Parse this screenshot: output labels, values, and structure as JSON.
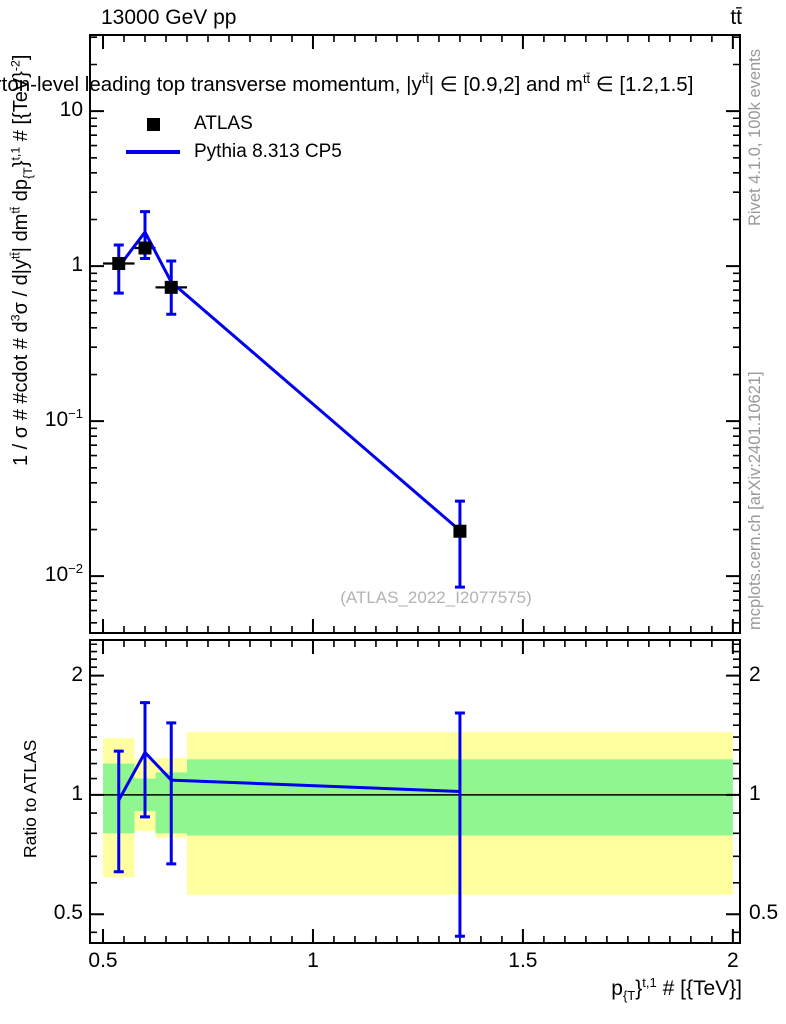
{
  "header": {
    "collision": "13000 GeV pp",
    "process": "tt̄"
  },
  "title_parts": [
    {
      "t": "n",
      "v": "parton-level leading top transverse momentum, |y"
    },
    {
      "t": "sup",
      "v": "tt̄"
    },
    {
      "t": "n",
      "v": "| ∈ [0.9,2] and m"
    },
    {
      "t": "sup",
      "v": "tt̄"
    },
    {
      "t": "n",
      "v": " ∈ [1.2,1.5]"
    }
  ],
  "legend": {
    "entries": [
      {
        "label": "ATLAS",
        "marker": "black-square"
      },
      {
        "label": "Pythia 8.313 CP5",
        "marker": "blue-line"
      }
    ]
  },
  "watermark": "(ATLAS_2022_I2077575)",
  "side_notes": {
    "generator": "Rivet 4.1.0,  100k events",
    "source": "mcplots.cern.ch [arXiv:2401.10621]"
  },
  "colors": {
    "mc_line": "#0000ee",
    "data_marker": "#000000",
    "band_yellow": "#ffffa0",
    "band_green": "#90f790",
    "note_gray": "#999999",
    "watermark_gray": "#b3b3b3"
  },
  "ylabel_main_parts": [
    {
      "t": "n",
      "v": "1 / σ # #cdot # d"
    },
    {
      "t": "sup",
      "v": "3"
    },
    {
      "t": "n",
      "v": "σ / d|y"
    },
    {
      "t": "sup",
      "v": "tt̄"
    },
    {
      "t": "n",
      "v": "| dm"
    },
    {
      "t": "sup",
      "v": "tt̄"
    },
    {
      "t": "n",
      "v": " dp"
    },
    {
      "t": "sub",
      "v": "{T"
    },
    {
      "t": "n",
      "v": "}"
    },
    {
      "t": "sup",
      "v": "t,1"
    },
    {
      "t": "n",
      "v": " # [{TeV}"
    },
    {
      "t": "sup",
      "v": "-2"
    },
    {
      "t": "n",
      "v": "]"
    }
  ],
  "xlabel_parts": [
    {
      "t": "n",
      "v": "p"
    },
    {
      "t": "sub",
      "v": "{T"
    },
    {
      "t": "n",
      "v": "}"
    },
    {
      "t": "sup",
      "v": "t,1"
    },
    {
      "t": "n",
      "v": " # [{TeV}]"
    }
  ],
  "chart_data": [
    {
      "type": "line",
      "name": "main-panel",
      "yscale": "log10",
      "xlim": [
        0.469,
        2.017
      ],
      "ylim": [
        0.0043,
        31
      ],
      "x_major_ticks": [
        0.5,
        1,
        1.5,
        2
      ],
      "x_tick_labels": [
        "0.5",
        "1",
        "1.5",
        "2"
      ],
      "x_minor_step": 0.05,
      "y_major_ticks": [
        10,
        1,
        0.1,
        0.01
      ],
      "y_tick_labels": [
        {
          "v": 10,
          "base": "10",
          "exp": ""
        },
        {
          "v": 1,
          "base": "1",
          "exp": ""
        },
        {
          "v": 0.1,
          "base": "10",
          "exp": "−1"
        },
        {
          "v": 0.01,
          "base": "10",
          "exp": "−2"
        }
      ],
      "bin_edges": [
        0.5,
        0.575,
        0.625,
        0.7,
        2.0
      ],
      "x": [
        0.5375,
        0.6,
        0.6625,
        1.35
      ],
      "series": [
        {
          "name": "ATLAS",
          "type": "markers",
          "y": [
            1.04,
            1.31,
            0.73,
            0.0195
          ],
          "xbar_bins": [
            0,
            1,
            2
          ]
        },
        {
          "name": "Pythia 8.313 CP5",
          "type": "line-with-errors",
          "y": [
            0.99,
            1.66,
            0.79,
            0.0197
          ],
          "y_lo": [
            0.67,
            1.12,
            0.49,
            0.0085
          ],
          "y_hi": [
            1.37,
            2.25,
            1.08,
            0.0305
          ]
        }
      ]
    },
    {
      "type": "ratio",
      "name": "ratio-panel",
      "ylabel": "Ratio to ATLAS",
      "yscale": "log2",
      "ylim": [
        0.423,
        2.46
      ],
      "y_major_ticks": [
        2,
        1,
        0.5
      ],
      "y_tick_labels": [
        "2",
        "1",
        "0.5"
      ],
      "y_minor_ticks": [
        0.45,
        0.6,
        0.7,
        0.8,
        0.9,
        1.1,
        1.2,
        1.3,
        1.4,
        1.5,
        1.6,
        1.7,
        1.8,
        1.9,
        2.1,
        2.2,
        2.3,
        2.4
      ],
      "reference_line": 1,
      "x": [
        0.5375,
        0.6,
        0.6625,
        1.35
      ],
      "bands": [
        {
          "x0": 0.5,
          "x1": 0.575,
          "yellow": [
            0.62,
            1.39
          ],
          "green": [
            0.8,
            1.2
          ]
        },
        {
          "x0": 0.575,
          "x1": 0.625,
          "yellow": [
            0.81,
            1.23
          ],
          "green": [
            0.91,
            1.1
          ]
        },
        {
          "x0": 0.625,
          "x1": 0.7,
          "yellow": [
            0.78,
            1.24
          ],
          "green": [
            0.8,
            1.14
          ]
        },
        {
          "x0": 0.7,
          "x1": 2.0,
          "yellow": [
            0.56,
            1.44
          ],
          "green": [
            0.79,
            1.23
          ]
        }
      ],
      "series": [
        {
          "name": "Pythia 8.313 CP5 / ATLAS",
          "y": [
            0.97,
            1.28,
            1.09,
            1.02
          ],
          "y_lo": [
            0.64,
            0.88,
            0.67,
            0.44
          ],
          "y_hi": [
            1.29,
            1.71,
            1.52,
            1.61
          ]
        }
      ]
    }
  ]
}
